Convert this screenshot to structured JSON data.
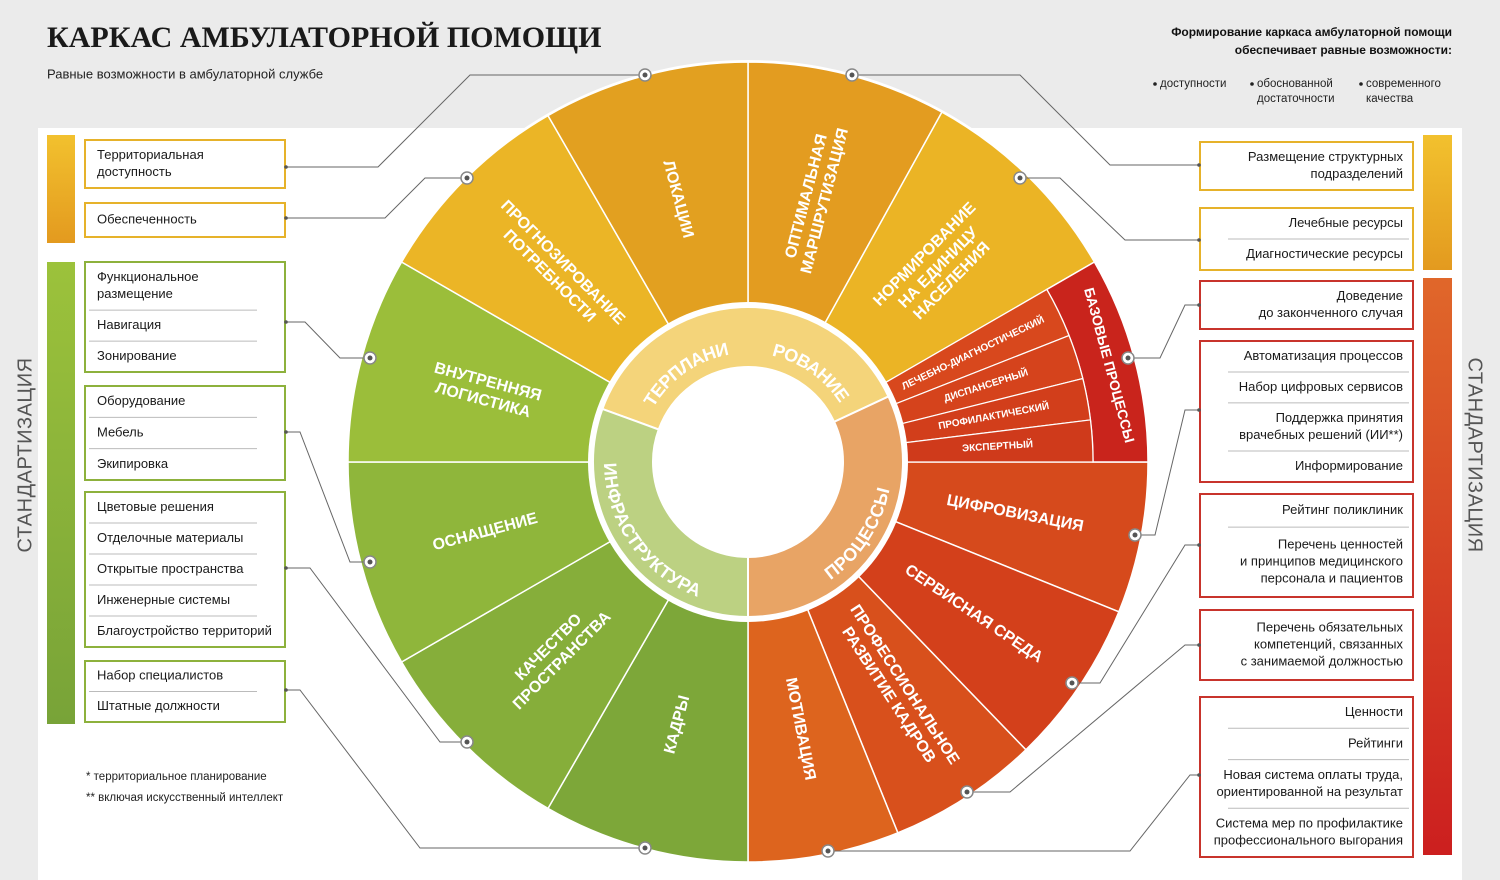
{
  "header": {
    "title": "КАРКАС АМБУЛАТОРНОЙ ПОМОЩИ",
    "subtitle": "Равные возможности в амбулаторной службе"
  },
  "intro": {
    "lines": [
      "Формирование каркаса амбулаторной помощи",
      "обеспечивает равные возможности:"
    ],
    "bullets": [
      [
        "доступности"
      ],
      [
        "обоснованной",
        "достаточности"
      ],
      [
        "современного",
        "качества"
      ]
    ]
  },
  "side_labels": {
    "left": "СТАНДАРТИЗАЦИЯ",
    "right": "СТАНДАРТИЗАЦИЯ"
  },
  "footnotes": [
    "* территориальное планирование",
    "** включая искусственный интеллект"
  ],
  "inner_ring": {
    "top": [
      "ТЕРПЛАНИ",
      "РОВАНИЕ"
    ],
    "left": "ИНФРАСТРУКТУРА",
    "right": "ПРОЦЕССЫ"
  },
  "sectors": [
    [
      "ОПТИМАЛЬНАЯ",
      "МАРШРУТИЗАЦИЯ"
    ],
    [
      "НОРМИРОВАНИЕ",
      "НА ЕДИНИЦУ",
      "НАСЕЛЕНИЯ"
    ],
    [
      "ЦИФРОВИЗАЦИЯ"
    ],
    [
      "СЕРВИСНАЯ СРЕДА"
    ],
    [
      "ПРОФЕССИОНАЛЬНОЕ",
      "РАЗВИТИЕ КАДРОВ"
    ],
    [
      "МОТИВАЦИЯ"
    ],
    [
      "КАДРЫ"
    ],
    [
      "КАЧЕСТВО",
      "ПРОСТРАНСТВА"
    ],
    [
      "ОСНАЩЕНИЕ"
    ],
    [
      "ВНУТРЕННЯЯ",
      "ЛОГИСТИКА"
    ],
    [
      "ПРОГНОЗИРОВАНИЕ",
      "ПОТРЕБНОСТИ"
    ],
    [
      "ЛОКАЦИИ"
    ]
  ],
  "base_processes": {
    "label": "БАЗОВЫЕ ПРОЦЕССЫ",
    "items": [
      "ЛЕЧЕБНО-ДИАГНОСТИЧЕСКИЙ",
      "ДИСПАНСЕРНЫЙ",
      "ПРОФИЛАКТИЧЕСКИЙ",
      "ЭКСПЕРТНЫЙ"
    ]
  },
  "left_groups": [
    {
      "items": [
        [
          "Территориальная",
          "доступность"
        ]
      ]
    },
    {
      "items": [
        [
          "Обеспеченность"
        ]
      ]
    },
    {
      "items": [
        [
          "Функциональное",
          "размещение"
        ],
        [
          "Навигация"
        ],
        [
          "Зонирование"
        ]
      ]
    },
    {
      "items": [
        [
          "Оборудование"
        ],
        [
          "Мебель"
        ],
        [
          "Экипировка"
        ]
      ]
    },
    {
      "items": [
        [
          "Цветовые решения"
        ],
        [
          "Отделочные материалы"
        ],
        [
          "Открытые пространства"
        ],
        [
          "Инженерные системы"
        ],
        [
          "Благоустройство территорий"
        ]
      ]
    },
    {
      "items": [
        [
          "Набор специалистов"
        ],
        [
          "Штатные должности"
        ]
      ]
    }
  ],
  "right_groups": [
    {
      "items": [
        [
          "Размещение структурных",
          "подразделений"
        ]
      ]
    },
    {
      "items": [
        [
          "Лечебные ресурсы"
        ],
        [
          "Диагностические ресурсы"
        ]
      ]
    },
    {
      "items": [
        [
          "Доведение",
          "до законченного случая"
        ]
      ]
    },
    {
      "items": [
        [
          "Автоматизация процессов"
        ],
        [
          "Набор цифровых сервисов"
        ],
        [
          "Поддержка принятия",
          "врачебных решений (ИИ**)"
        ],
        [
          "Информирование"
        ]
      ]
    },
    {
      "items": [
        [
          "Рейтинг поликлиник"
        ],
        [
          "Перечень ценностей",
          "и принципов медицинского",
          "персонала и пациентов"
        ]
      ]
    },
    {
      "items": [
        [
          "Перечень обязательных",
          "компетенций, связанных",
          "с занимаемой должностью"
        ]
      ]
    },
    {
      "items": [
        [
          "Ценности"
        ],
        [
          "Рейтинги"
        ],
        [
          "Новая система оплаты труда,",
          "ориентированной на результат"
        ],
        [
          "Система мер по профилактике",
          "профессионального выгорания"
        ]
      ]
    }
  ]
}
